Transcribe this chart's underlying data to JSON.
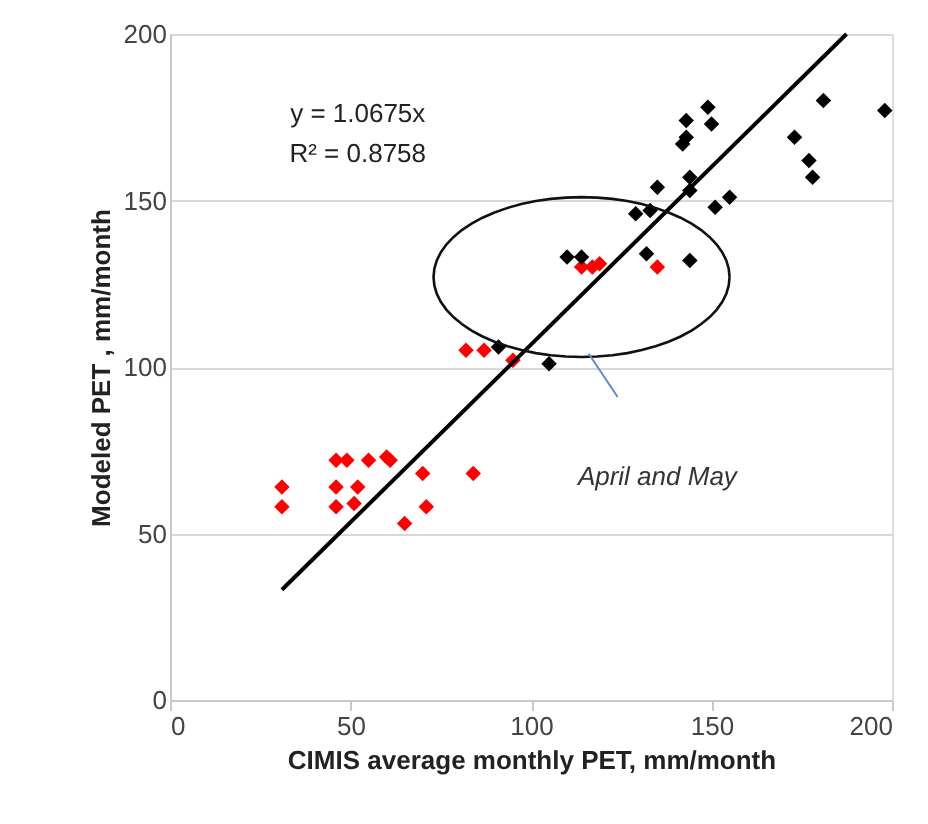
{
  "chart_data": {
    "type": "scatter",
    "xlabel": "CIMIS average monthly PET, mm/month",
    "ylabel": "Modeled PET , mm/month",
    "xlim": [
      0,
      200
    ],
    "xticks": [
      0,
      50,
      100,
      150,
      200
    ],
    "ylim": [
      0,
      200
    ],
    "yticks": [
      0,
      50,
      100,
      150,
      200
    ],
    "grid": "y",
    "marker": "diamond",
    "annotations": [
      "y = 1.0675x",
      "R² = 0.8758",
      "April and May"
    ],
    "series": [
      {
        "color": "#ff0000",
        "x": [
          31,
          31,
          46,
          49,
          55,
          60,
          61,
          46,
          46,
          52,
          51,
          70,
          71,
          65,
          84,
          82,
          87,
          95,
          114,
          117,
          119,
          135
        ],
        "values": [
          64,
          58,
          72,
          72,
          72,
          73,
          72,
          64,
          58,
          64,
          59,
          68,
          58,
          53,
          68,
          105,
          105,
          102,
          130,
          130,
          131,
          130
        ]
      },
      {
        "color": "#000000",
        "x": [
          91,
          105,
          110,
          114,
          132,
          144,
          129,
          133,
          135,
          144,
          144,
          151,
          155,
          142,
          143,
          143,
          149,
          150,
          173,
          177,
          178,
          181,
          198
        ],
        "values": [
          106,
          101,
          133,
          133,
          134,
          132,
          146,
          147,
          154,
          157,
          153,
          148,
          151,
          167,
          169,
          174,
          178,
          173,
          169,
          162,
          157,
          180,
          177
        ]
      },
      {
        "type": "line",
        "color": "#000000",
        "marker": "none",
        "line_style": "solid",
        "x": [
          31,
          187.4
        ],
        "values": [
          33.1,
          200
        ]
      }
    ]
  }
}
